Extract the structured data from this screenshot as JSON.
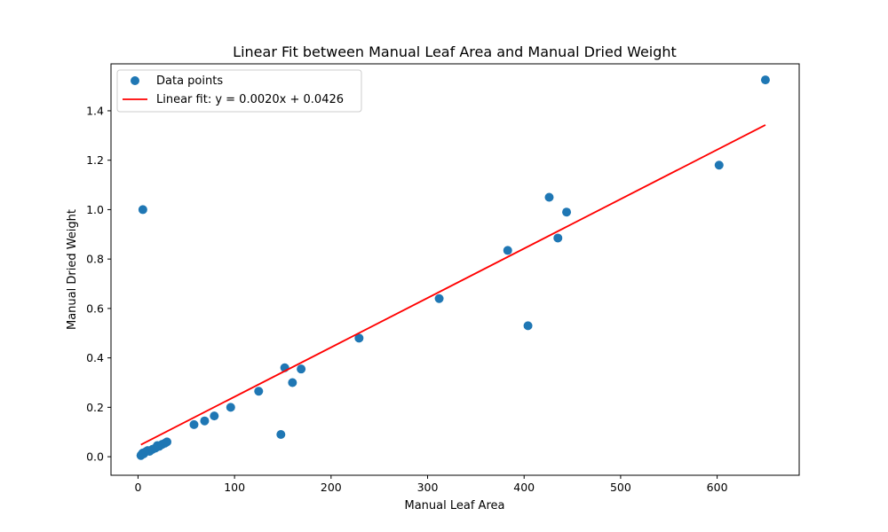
{
  "chart_data": {
    "type": "scatter",
    "title": "Linear Fit between Manual Leaf Area and Manual Dried Weight",
    "xlabel": "Manual Leaf Area",
    "ylabel": "Manual Dried Weight",
    "xlim": [
      -28,
      685
    ],
    "ylim": [
      -0.075,
      1.59
    ],
    "xticks": [
      0,
      100,
      200,
      300,
      400,
      500,
      600
    ],
    "yticks": [
      0.0,
      0.2,
      0.4,
      0.6,
      0.8,
      1.0,
      1.2,
      1.4
    ],
    "legend_position": "top-left",
    "grid": false,
    "colors": {
      "points": "#1f77b4",
      "fit": "#ff0000"
    },
    "series": [
      {
        "name": "Data points",
        "kind": "scatter",
        "x": [
          3,
          4,
          5,
          6,
          8,
          10,
          12,
          15,
          18,
          20,
          22,
          25,
          28,
          30,
          5,
          58,
          69,
          79,
          96,
          125,
          148,
          152,
          160,
          169,
          229,
          312,
          383,
          404,
          426,
          435,
          444,
          602,
          650
        ],
        "y": [
          0.005,
          0.01,
          0.015,
          0.012,
          0.02,
          0.025,
          0.022,
          0.03,
          0.035,
          0.045,
          0.042,
          0.05,
          0.055,
          0.06,
          1.0,
          0.13,
          0.145,
          0.165,
          0.2,
          0.265,
          0.09,
          0.36,
          0.3,
          0.355,
          0.48,
          0.64,
          0.835,
          0.53,
          1.05,
          0.885,
          0.99,
          1.18,
          1.525
        ]
      },
      {
        "name": "Linear fit: y = 0.0020x + 0.0426",
        "kind": "line",
        "slope": 0.002,
        "intercept": 0.0426,
        "x": [
          3,
          650
        ]
      }
    ]
  }
}
